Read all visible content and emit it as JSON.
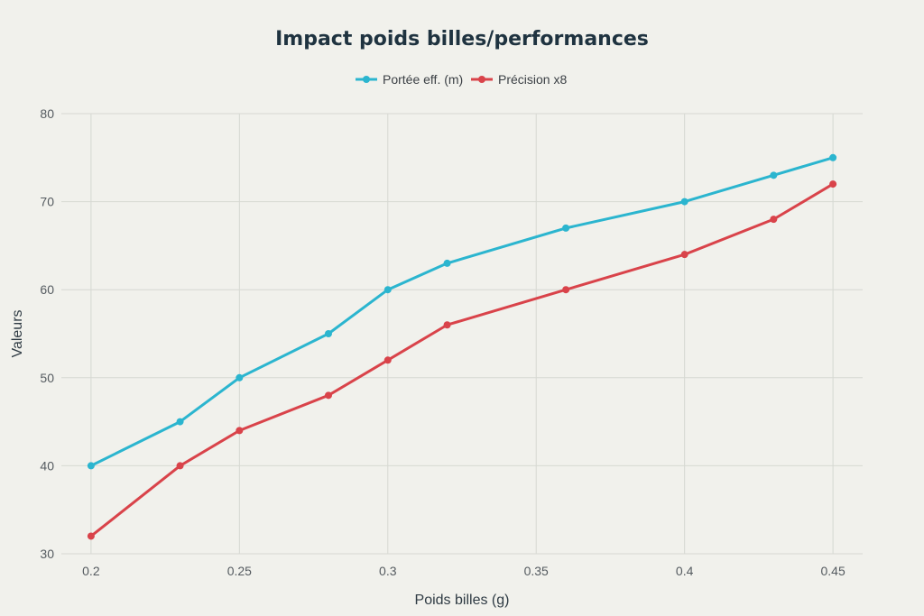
{
  "chart_data": {
    "type": "line",
    "title": "Impact poids billes/performances",
    "xlabel": "Poids billes (g)",
    "ylabel": "Valeurs",
    "x": [
      0.2,
      0.23,
      0.25,
      0.28,
      0.3,
      0.32,
      0.36,
      0.4,
      0.43,
      0.45
    ],
    "xlim": [
      0.19,
      0.46
    ],
    "ylim": [
      30,
      80
    ],
    "x_ticks": [
      "0.2",
      "0.25",
      "0.3",
      "0.35",
      "0.4",
      "0.45"
    ],
    "y_ticks": [
      "30",
      "40",
      "50",
      "60",
      "70",
      "80"
    ],
    "grid": true,
    "legend_position": "top-center",
    "series": [
      {
        "name": "Portée eff. (m)",
        "color": "#2bb5cf",
        "values": [
          40,
          45,
          50,
          55,
          60,
          63,
          67,
          70,
          73,
          75
        ]
      },
      {
        "name": "Précision x8",
        "color": "#d9434a",
        "values": [
          32,
          40,
          44,
          48,
          52,
          56,
          60,
          64,
          68,
          72
        ]
      }
    ]
  }
}
